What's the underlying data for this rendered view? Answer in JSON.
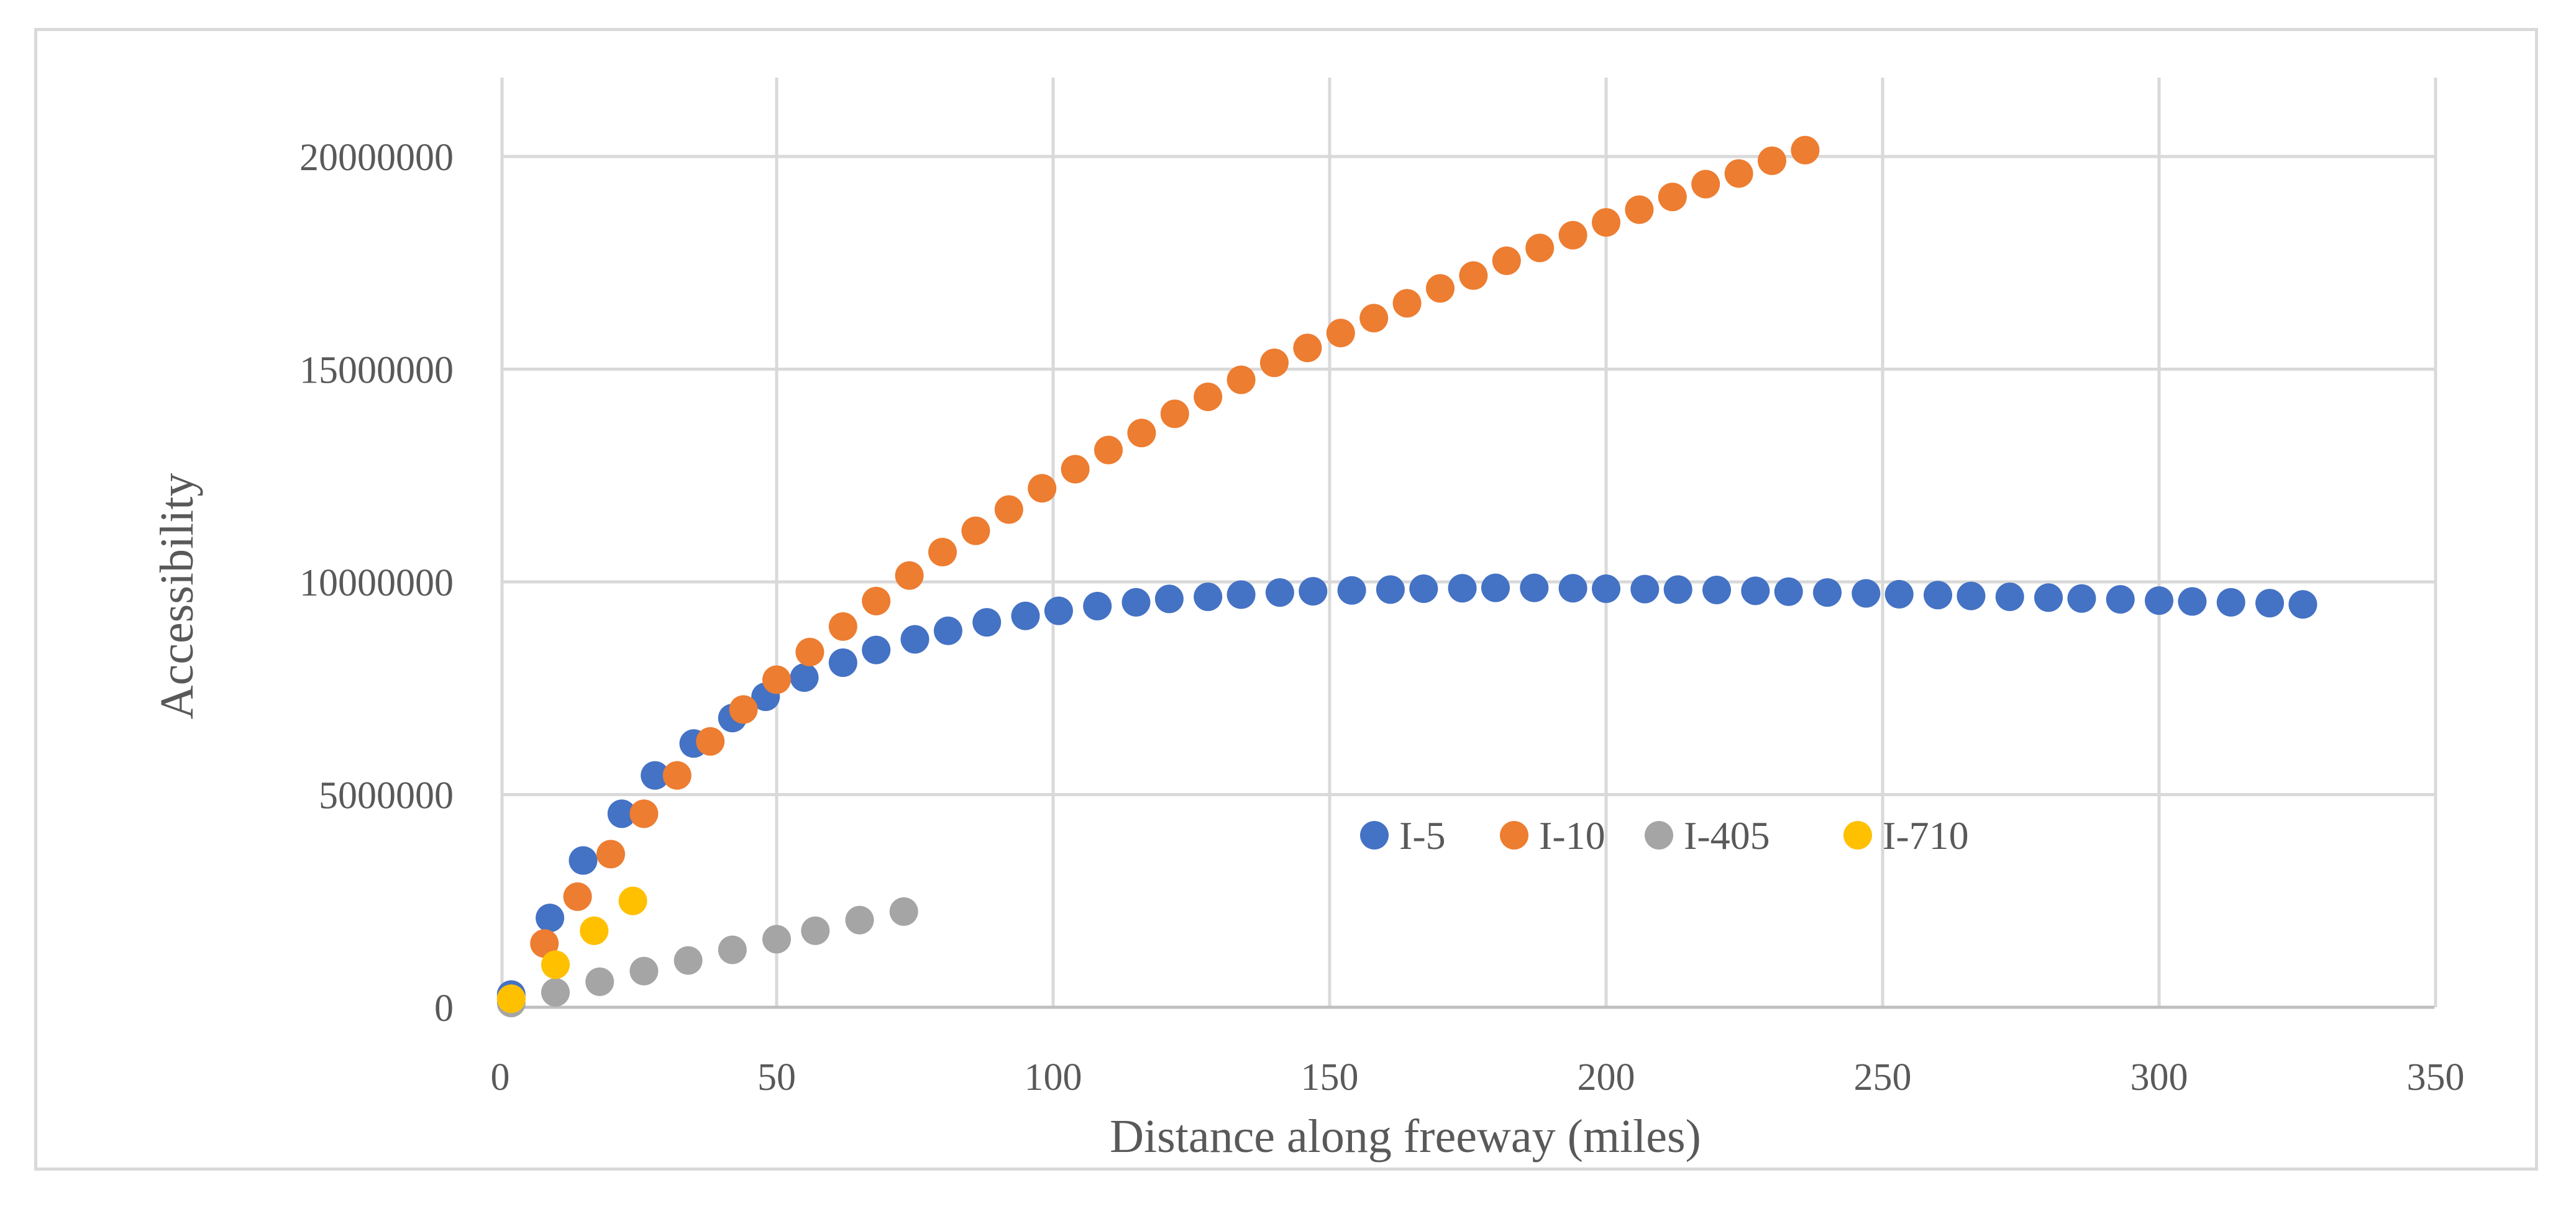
{
  "chart_data": {
    "type": "scatter",
    "title": "",
    "xlabel": "Distance along freeway (miles)",
    "ylabel": "Accessibility",
    "xlim": [
      0,
      350
    ],
    "ylim": [
      0,
      22000000
    ],
    "x_ticks": [
      "0",
      "50",
      "100",
      "150",
      "200",
      "250",
      "300",
      "350"
    ],
    "y_ticks": [
      "0",
      "5000000",
      "10000000",
      "15000000",
      "20000000"
    ],
    "x_tick_values": [
      0,
      50,
      100,
      150,
      200,
      250,
      300,
      350
    ],
    "y_tick_values": [
      0,
      5000000,
      10000000,
      15000000,
      20000000
    ],
    "grid": true,
    "legend_position": "center-right",
    "series": [
      {
        "name": "I-5",
        "color": "#4472C4",
        "x": [
          2,
          9,
          15,
          22,
          28,
          35,
          42,
          48,
          55,
          62,
          68,
          75,
          81,
          88,
          95,
          101,
          108,
          115,
          121,
          128,
          134,
          141,
          147,
          154,
          161,
          167,
          174,
          180,
          187,
          194,
          200,
          207,
          213,
          220,
          227,
          233,
          240,
          247,
          253,
          260,
          266,
          273,
          280,
          286,
          293,
          300,
          306,
          313,
          320,
          326
        ],
        "y": [
          300000,
          2100000,
          3450000,
          4550000,
          5450000,
          6200000,
          6800000,
          7300000,
          7750000,
          8100000,
          8400000,
          8650000,
          8850000,
          9050000,
          9200000,
          9320000,
          9430000,
          9520000,
          9600000,
          9650000,
          9700000,
          9750000,
          9780000,
          9800000,
          9820000,
          9840000,
          9850000,
          9860000,
          9860000,
          9850000,
          9840000,
          9830000,
          9820000,
          9810000,
          9790000,
          9770000,
          9750000,
          9730000,
          9710000,
          9690000,
          9670000,
          9650000,
          9630000,
          9610000,
          9590000,
          9560000,
          9540000,
          9520000,
          9500000,
          9470000
        ]
      },
      {
        "name": "I-10",
        "color": "#ED7D31",
        "x": [
          2,
          8,
          14,
          20,
          26,
          32,
          38,
          44,
          50,
          56,
          62,
          68,
          74,
          80,
          86,
          92,
          98,
          104,
          110,
          116,
          122,
          128,
          134,
          140,
          146,
          152,
          158,
          164,
          170,
          176,
          182,
          188,
          194,
          200,
          206,
          212,
          218,
          224,
          230,
          236
        ],
        "y": [
          200000,
          1500000,
          2600000,
          3600000,
          4550000,
          5450000,
          6250000,
          7000000,
          7700000,
          8350000,
          8950000,
          9550000,
          10150000,
          10700000,
          11200000,
          11700000,
          12200000,
          12650000,
          13100000,
          13500000,
          13950000,
          14350000,
          14750000,
          15150000,
          15500000,
          15850000,
          16200000,
          16550000,
          16900000,
          17200000,
          17550000,
          17850000,
          18150000,
          18450000,
          18750000,
          19050000,
          19350000,
          19600000,
          19900000,
          20150000
        ]
      },
      {
        "name": "I-405",
        "color": "#A5A5A5",
        "x": [
          2,
          10,
          18,
          26,
          34,
          42,
          50,
          57,
          65,
          73
        ],
        "y": [
          100000,
          350000,
          600000,
          850000,
          1100000,
          1350000,
          1600000,
          1800000,
          2050000,
          2250000
        ]
      },
      {
        "name": "I-710",
        "color": "#FFC000",
        "x": [
          2,
          10,
          17,
          24
        ],
        "y": [
          200000,
          1000000,
          1800000,
          2500000
        ]
      }
    ]
  }
}
